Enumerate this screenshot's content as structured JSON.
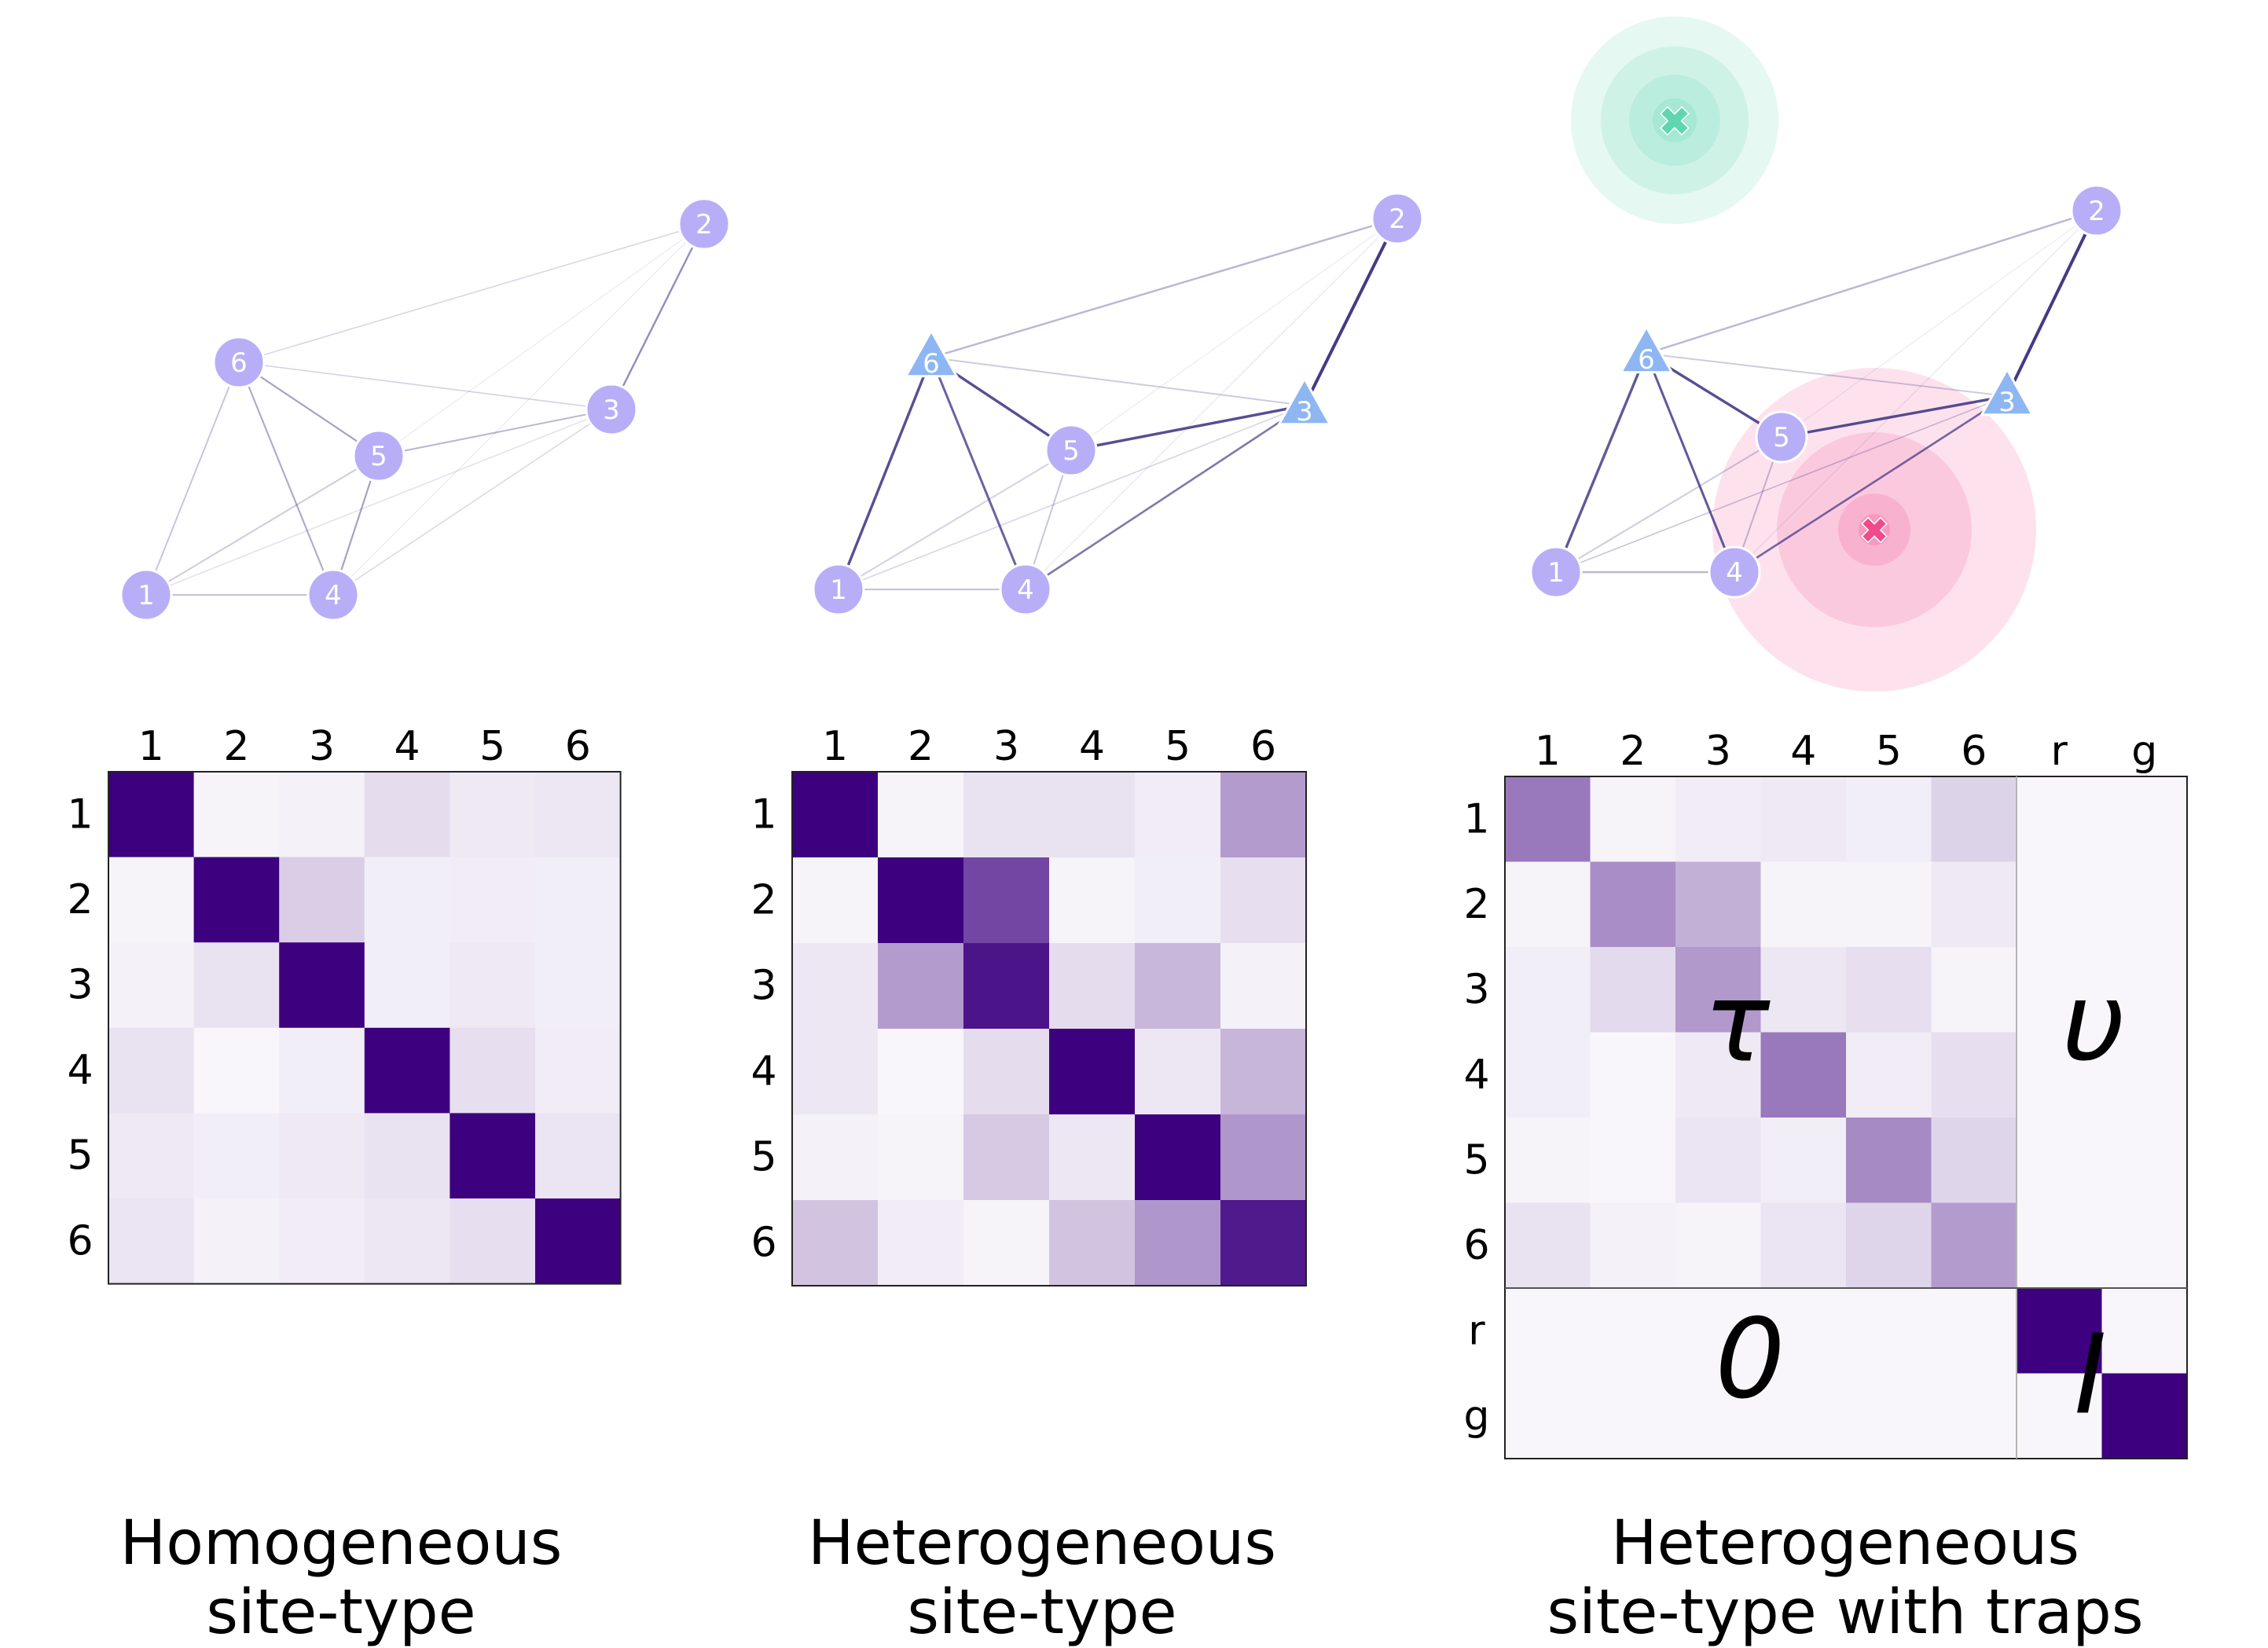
{
  "colors": {
    "node_circle": "#b8aef7",
    "node_triangle": "#8eb6f2",
    "edge": "#3a2f80",
    "matrix_max": "#3d007f",
    "green_trap": "#5fd6b0",
    "pink_trap": "#f04a8c"
  },
  "panels": [
    {
      "caption_line1": "Homogeneous",
      "caption_line2": "site-type",
      "nodes": [
        {
          "id": "1",
          "shape": "circle"
        },
        {
          "id": "2",
          "shape": "circle"
        },
        {
          "id": "3",
          "shape": "circle"
        },
        {
          "id": "4",
          "shape": "circle"
        },
        {
          "id": "5",
          "shape": "circle"
        },
        {
          "id": "6",
          "shape": "circle"
        }
      ],
      "row_labels": [
        "1",
        "2",
        "3",
        "4",
        "5",
        "6"
      ],
      "col_labels": [
        "1",
        "2",
        "3",
        "4",
        "5",
        "6"
      ],
      "matrix": [
        [
          1.0,
          0.03,
          0.04,
          0.12,
          0.07,
          0.08
        ],
        [
          0.03,
          1.0,
          0.18,
          0.05,
          0.06,
          0.05
        ],
        [
          0.04,
          0.1,
          1.0,
          0.05,
          0.07,
          0.05
        ],
        [
          0.1,
          0.02,
          0.05,
          1.0,
          0.11,
          0.06
        ],
        [
          0.07,
          0.05,
          0.07,
          0.1,
          1.0,
          0.09
        ],
        [
          0.09,
          0.04,
          0.06,
          0.08,
          0.11,
          1.0
        ]
      ]
    },
    {
      "caption_line1": "Heterogeneous",
      "caption_line2": "site-type",
      "nodes": [
        {
          "id": "1",
          "shape": "circle"
        },
        {
          "id": "2",
          "shape": "circle"
        },
        {
          "id": "3",
          "shape": "triangle"
        },
        {
          "id": "4",
          "shape": "circle"
        },
        {
          "id": "5",
          "shape": "circle"
        },
        {
          "id": "6",
          "shape": "triangle"
        }
      ],
      "row_labels": [
        "1",
        "2",
        "3",
        "4",
        "5",
        "6"
      ],
      "col_labels": [
        "1",
        "2",
        "3",
        "4",
        "5",
        "6"
      ],
      "matrix": [
        [
          1.0,
          0.03,
          0.1,
          0.1,
          0.06,
          0.38
        ],
        [
          0.03,
          1.0,
          0.72,
          0.03,
          0.05,
          0.11
        ],
        [
          0.08,
          0.38,
          0.92,
          0.12,
          0.27,
          0.04
        ],
        [
          0.08,
          0.02,
          0.12,
          1.0,
          0.08,
          0.28
        ],
        [
          0.04,
          0.03,
          0.2,
          0.08,
          1.0,
          0.4
        ],
        [
          0.22,
          0.06,
          0.03,
          0.22,
          0.4,
          0.9
        ]
      ]
    },
    {
      "caption_line1": "Heterogeneous",
      "caption_line2": "site-type with traps",
      "nodes": [
        {
          "id": "1",
          "shape": "circle"
        },
        {
          "id": "2",
          "shape": "circle"
        },
        {
          "id": "3",
          "shape": "triangle"
        },
        {
          "id": "4",
          "shape": "circle"
        },
        {
          "id": "5",
          "shape": "circle"
        },
        {
          "id": "6",
          "shape": "triangle"
        }
      ],
      "row_labels": [
        "1",
        "2",
        "3",
        "4",
        "5",
        "6",
        "r",
        "g"
      ],
      "col_labels": [
        "1",
        "2",
        "3",
        "4",
        "5",
        "6",
        "r",
        "g"
      ],
      "matrix": [
        [
          0.52,
          0.03,
          0.06,
          0.07,
          0.05,
          0.16,
          0.02,
          0.02
        ],
        [
          0.03,
          0.44,
          0.3,
          0.03,
          0.03,
          0.07,
          0.02,
          0.02
        ],
        [
          0.05,
          0.13,
          0.39,
          0.08,
          0.11,
          0.03,
          0.02,
          0.02
        ],
        [
          0.05,
          0.02,
          0.07,
          0.52,
          0.06,
          0.11,
          0.02,
          0.02
        ],
        [
          0.03,
          0.02,
          0.09,
          0.05,
          0.45,
          0.15,
          0.02,
          0.02
        ],
        [
          0.1,
          0.04,
          0.03,
          0.09,
          0.15,
          0.38,
          0.02,
          0.02
        ],
        [
          0.02,
          0.02,
          0.02,
          0.02,
          0.02,
          0.02,
          1.0,
          0.02
        ],
        [
          0.02,
          0.02,
          0.02,
          0.02,
          0.02,
          0.02,
          0.02,
          1.0
        ]
      ],
      "block_labels": {
        "tau": "τ",
        "upsilon": "υ",
        "zero": "0",
        "identity": "I"
      },
      "traps": [
        {
          "name": "green-trap",
          "color": "#5fd6b0",
          "symbol": "✖"
        },
        {
          "name": "pink-trap",
          "color": "#f04a8c",
          "symbol": "✖"
        }
      ]
    }
  ]
}
